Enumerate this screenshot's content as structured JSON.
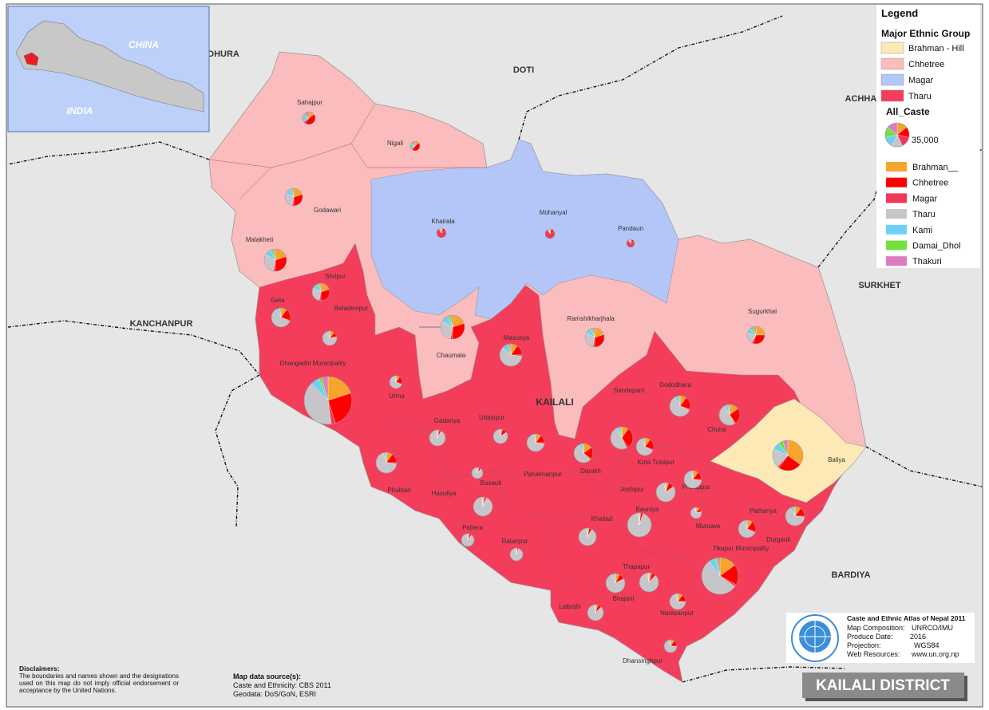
{
  "inset": {
    "china": "CHINA",
    "india": "INDIA"
  },
  "neighbors": [
    "DHURA",
    "DOTI",
    "ACHHAM",
    "SURKHET",
    "KANCHANPUR",
    "BARDIYA"
  ],
  "district_label": "KAILALI",
  "legend": {
    "title": "Legend",
    "ethnic_title": "Major Ethnic Group",
    "ethnic_groups": [
      {
        "name": "Brahman - Hill",
        "color": "#fce9b6"
      },
      {
        "name": "Chhetree",
        "color": "#fbbcbe"
      },
      {
        "name": "Magar",
        "color": "#b3c6f7"
      },
      {
        "name": "Tharu",
        "color": "#f33d5a"
      }
    ],
    "caste_title": "All_Caste",
    "size_reference": {
      "value": 35000,
      "label": "35,000"
    },
    "castes": [
      {
        "name": "Brahman__",
        "color": "#f6a42c"
      },
      {
        "name": "Chhetree",
        "color": "#ff0000"
      },
      {
        "name": "Magar",
        "color": "#f0375a"
      },
      {
        "name": "Tharu",
        "color": "#c6c6ca"
      },
      {
        "name": "Kami",
        "color": "#6fcff5"
      },
      {
        "name": "Damai_Dhol",
        "color": "#74e041"
      },
      {
        "name": "Thakuri",
        "color": "#dd7cc0"
      }
    ]
  },
  "vdcs": [
    {
      "name": "Sahajpur",
      "values": [
        1500,
        4500,
        500,
        0,
        1500,
        800,
        1200
      ]
    },
    {
      "name": "Nigali",
      "values": [
        800,
        2500,
        300,
        0,
        900,
        500,
        600
      ]
    },
    {
      "name": "Godawari",
      "values": [
        3800,
        5600,
        600,
        5600,
        1900,
        800,
        500
      ]
    },
    {
      "name": "Khairala",
      "values": [
        300,
        600,
        4200,
        0,
        300,
        100,
        100
      ]
    },
    {
      "name": "Mohanyal",
      "values": [
        300,
        600,
        4200,
        0,
        300,
        100,
        100
      ]
    },
    {
      "name": "Pandaun",
      "values": [
        200,
        400,
        2900,
        0,
        200,
        100,
        100
      ]
    },
    {
      "name": "Malakheti",
      "values": [
        6100,
        9200,
        900,
        9200,
        3000,
        1200,
        900
      ]
    },
    {
      "name": "Shripur",
      "values": [
        3800,
        5600,
        600,
        5600,
        1900,
        800,
        500
      ]
    },
    {
      "name": "Geta",
      "values": [
        2200,
        4500,
        400,
        13400,
        1100,
        400,
        400
      ]
    },
    {
      "name": "Beladevipur",
      "values": [
        1300,
        1300,
        300,
        8800,
        600,
        300,
        0
      ]
    },
    {
      "name": "Ramshikharjhala",
      "values": [
        4500,
        6700,
        700,
        6700,
        2200,
        900,
        700
      ]
    },
    {
      "name": "Sugurkhal",
      "values": [
        4700,
        5600,
        600,
        3800,
        1900,
        1300,
        900
      ]
    },
    {
      "name": "Chaumala",
      "values": [
        7000,
        10500,
        1000,
        10500,
        3500,
        1400,
        1100
      ]
    },
    {
      "name": "Masuriya",
      "values": [
        3000,
        4600,
        600,
        18300,
        2400,
        900,
        700
      ]
    },
    {
      "name": "Dhangadhi Municipality",
      "values": [
        28000,
        35000,
        4000,
        56000,
        8000,
        3000,
        6000
      ]
    },
    {
      "name": "Urma",
      "values": [
        1000,
        2000,
        200,
        6000,
        500,
        200,
        100
      ]
    },
    {
      "name": "Dododhara",
      "values": [
        2600,
        5300,
        500,
        15800,
        1300,
        500,
        300
      ]
    },
    {
      "name": "Sandepani",
      "values": [
        3000,
        9200,
        900,
        15300,
        1200,
        600,
        300
      ]
    },
    {
      "name": "Chuha",
      "values": [
        3900,
        6600,
        500,
        13200,
        1300,
        500,
        300
      ]
    },
    {
      "name": "Gadariya",
      "values": [
        600,
        600,
        200,
        13800,
        300,
        100,
        0
      ]
    },
    {
      "name": "Udasipur",
      "values": [
        600,
        1300,
        100,
        10100,
        300,
        100,
        100
      ]
    },
    {
      "name": "Baliya",
      "values": [
        19700,
        14000,
        1100,
        11200,
        4500,
        2800,
        2900
      ]
    },
    {
      "name": "Pahalmanpur",
      "values": [
        1900,
        2800,
        400,
        12700,
        600,
        200,
        200
      ]
    },
    {
      "name": "Kota Tulsipur",
      "values": [
        1900,
        3800,
        400,
        11300,
        700,
        400,
        300
      ]
    },
    {
      "name": "Darakh",
      "values": [
        3400,
        4500,
        400,
        12300,
        1100,
        400,
        300
      ]
    },
    {
      "name": "Phulbari",
      "values": [
        2600,
        4000,
        500,
        17800,
        900,
        300,
        200
      ]
    },
    {
      "name": "Basauti",
      "values": [
        400,
        400,
        100,
        6600,
        100,
        0,
        0
      ]
    },
    {
      "name": "Hasuliya",
      "values": [
        600,
        700,
        200,
        20500,
        300,
        100,
        0
      ]
    },
    {
      "name": "Pratappur",
      "values": [
        1900,
        2800,
        400,
        12700,
        600,
        200,
        200
      ]
    },
    {
      "name": "Joshipur",
      "values": [
        1100,
        2200,
        200,
        18200,
        500,
        200,
        0
      ]
    },
    {
      "name": "Pathariya",
      "values": [
        1900,
        3800,
        400,
        11300,
        700,
        400,
        300
      ]
    },
    {
      "name": "Bauniya",
      "values": [
        700,
        1000,
        300,
        32500,
        300,
        200,
        0
      ]
    },
    {
      "name": "Munuwa",
      "values": [
        800,
        800,
        100,
        5500,
        200,
        100,
        100
      ]
    },
    {
      "name": "Durgauli",
      "values": [
        2200,
        3400,
        400,
        14600,
        1100,
        400,
        300
      ]
    },
    {
      "name": "Pabera",
      "values": [
        500,
        500,
        100,
        8700,
        100,
        100,
        0
      ]
    },
    {
      "name": "Khailad",
      "values": [
        600,
        900,
        200,
        16700,
        300,
        100,
        0
      ]
    },
    {
      "name": "Ratanpur",
      "values": [
        300,
        300,
        100,
        9200,
        100,
        0,
        0
      ]
    },
    {
      "name": "Tikapur Municipality",
      "values": [
        12300,
        14800,
        1600,
        45300,
        4900,
        1600,
        1800
      ]
    },
    {
      "name": "Thapapur",
      "values": [
        1100,
        1500,
        200,
        19000,
        400,
        200,
        0
      ]
    },
    {
      "name": "Bhajani",
      "values": [
        1600,
        2200,
        300,
        17000,
        800,
        300,
        200
      ]
    },
    {
      "name": "Narayanpur",
      "values": [
        1600,
        2300,
        200,
        10700,
        500,
        200,
        100
      ]
    },
    {
      "name": "Lalbojhi",
      "values": [
        800,
        1100,
        200,
        13000,
        300,
        200,
        0
      ]
    },
    {
      "name": "Dhansinghpur",
      "values": [
        1000,
        1500,
        100,
        6800,
        400,
        100,
        100
      ]
    }
  ],
  "disclaimer": {
    "title": "Disclaimers:",
    "text": "The boundaries and names shown and the designations used on this map do not imply official endorsement or acceptance by the United Nations."
  },
  "sources": {
    "title": "Map data source(s):",
    "lines": [
      "Caste and Ethnicity: CBS 2011",
      "Geodata: DoS/GoN, ESRI"
    ]
  },
  "credits": {
    "title": "Caste and Ethnic Atlas of Nepal 2011",
    "rows": [
      [
        "Map Composition:",
        "UNRCO/IMU"
      ],
      [
        "Produce Date:",
        "2016"
      ],
      [
        "Projection:",
        "WGS84"
      ],
      [
        "Web Resources:",
        "www.un.org.np"
      ]
    ]
  },
  "map_title": "KAILALI DISTRICT"
}
